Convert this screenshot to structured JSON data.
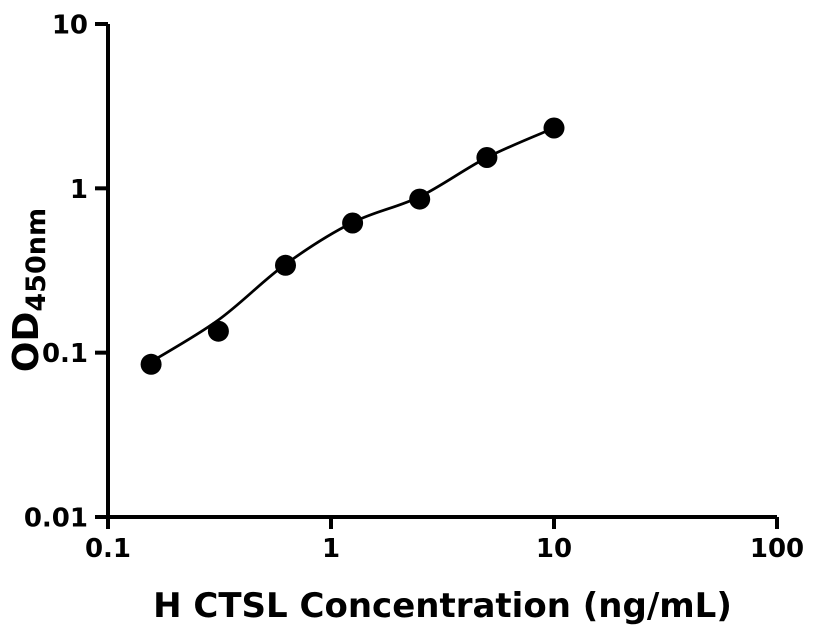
{
  "figure": {
    "background_color": "#ffffff",
    "foreground_color": "#000000"
  },
  "chart_data": {
    "type": "scatter",
    "title": "",
    "xlabel": "H CTSL Concentration (ng/mL)",
    "ylabel_main": "OD",
    "ylabel_subscript": "450nm",
    "x_scale": "log10",
    "y_scale": "log10",
    "xlim": [
      0.1,
      100
    ],
    "ylim": [
      0.01,
      10
    ],
    "grid": false,
    "legend": false,
    "x_ticks": [
      {
        "value": 0.1,
        "label": "0.1"
      },
      {
        "value": 1,
        "label": "1"
      },
      {
        "value": 10,
        "label": "10"
      },
      {
        "value": 100,
        "label": "100"
      }
    ],
    "y_ticks": [
      {
        "value": 10,
        "label": "10"
      },
      {
        "value": 1,
        "label": "1"
      },
      {
        "value": 0.1,
        "label": "0.1"
      },
      {
        "value": 0.01,
        "label": "0.01"
      }
    ],
    "series": [
      {
        "marker": "filled-circle",
        "marker_color": "#000000",
        "points": [
          {
            "x": 0.156,
            "y": 0.085
          },
          {
            "x": 0.3125,
            "y": 0.135
          },
          {
            "x": 0.625,
            "y": 0.34
          },
          {
            "x": 1.25,
            "y": 0.615
          },
          {
            "x": 2.5,
            "y": 0.86
          },
          {
            "x": 5,
            "y": 1.54
          },
          {
            "x": 10,
            "y": 2.33
          }
        ]
      }
    ],
    "fit_curve": {
      "style": "smooth standard-curve fit through points",
      "color": "#000000",
      "points": [
        {
          "x": 0.156,
          "y": 0.088
        },
        {
          "x": 0.3125,
          "y": 0.158
        },
        {
          "x": 0.625,
          "y": 0.345
        },
        {
          "x": 1.25,
          "y": 0.62
        },
        {
          "x": 2.5,
          "y": 0.89
        },
        {
          "x": 5,
          "y": 1.54
        },
        {
          "x": 10,
          "y": 2.33
        }
      ]
    }
  }
}
